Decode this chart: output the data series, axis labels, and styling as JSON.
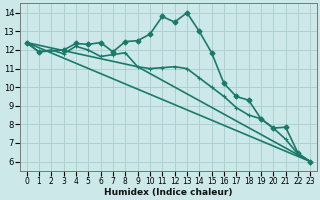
{
  "bg_color": "#cce8e8",
  "grid_color": "#aacccc",
  "line_color": "#1a7a6a",
  "xlabel": "Humidex (Indice chaleur)",
  "xlim": [
    -0.5,
    23.5
  ],
  "ylim": [
    5.5,
    14.5
  ],
  "yticks": [
    6,
    7,
    8,
    9,
    10,
    11,
    12,
    13,
    14
  ],
  "xticks": [
    0,
    1,
    2,
    3,
    4,
    5,
    6,
    7,
    8,
    9,
    10,
    11,
    12,
    13,
    14,
    15,
    16,
    17,
    18,
    19,
    20,
    21,
    22,
    23
  ],
  "series": [
    {
      "x": [
        0,
        23
      ],
      "y": [
        12.4,
        6.0
      ],
      "marker": null,
      "linewidth": 1.2
    },
    {
      "x": [
        0,
        9,
        23
      ],
      "y": [
        12.4,
        11.1,
        6.0
      ],
      "marker": null,
      "linewidth": 1.2
    },
    {
      "x": [
        0,
        1,
        2,
        3,
        4,
        5,
        6,
        7,
        8,
        9,
        10,
        11,
        12,
        13,
        14,
        15,
        16,
        17,
        18,
        19,
        20,
        21,
        22,
        23
      ],
      "y": [
        12.4,
        11.9,
        12.0,
        11.8,
        12.2,
        12.0,
        11.65,
        11.75,
        11.85,
        11.1,
        11.0,
        11.05,
        11.1,
        11.0,
        10.5,
        10.0,
        9.5,
        8.9,
        8.5,
        8.3,
        7.8,
        7.2,
        6.4,
        6.0
      ],
      "marker": "+",
      "linewidth": 1.2
    },
    {
      "x": [
        0,
        1,
        3,
        4,
        5,
        6,
        7,
        8,
        9,
        10,
        11,
        12,
        13,
        14,
        15,
        16,
        17,
        18,
        19,
        20,
        21,
        22,
        23
      ],
      "y": [
        12.4,
        11.9,
        12.0,
        12.35,
        12.3,
        12.4,
        11.9,
        12.45,
        12.5,
        12.85,
        13.8,
        13.5,
        14.0,
        13.0,
        11.85,
        10.2,
        9.5,
        9.3,
        8.3,
        7.8,
        7.85,
        6.45,
        6.0
      ],
      "marker": "D",
      "linewidth": 1.2
    }
  ]
}
